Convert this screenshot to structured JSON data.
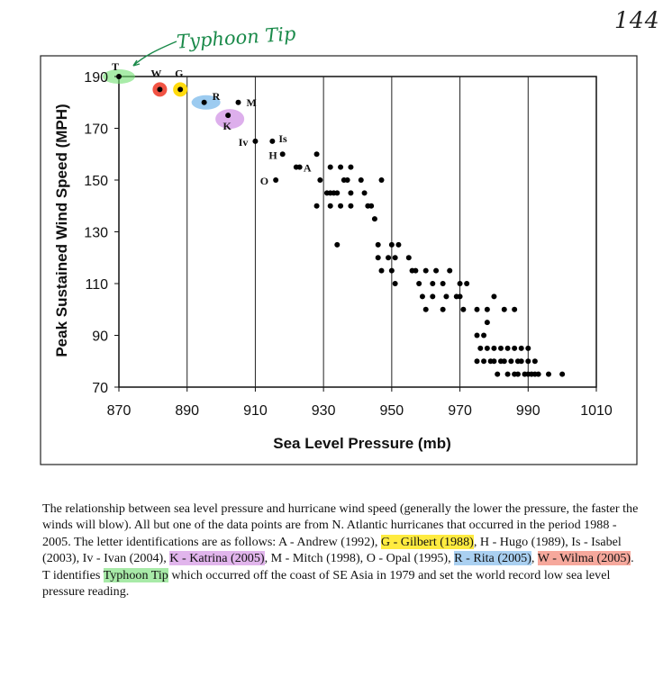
{
  "page_number": "144",
  "annotation": "Typhoon Tip",
  "chart_data": {
    "type": "scatter",
    "title": "",
    "xlabel": "Sea Level Pressure (mb)",
    "ylabel": "Peak Sustained Wind Speed (MPH)",
    "xlim": [
      870,
      1010
    ],
    "ylim": [
      70,
      190
    ],
    "xticks": [
      "870",
      "890",
      "910",
      "930",
      "950",
      "970",
      "990",
      "1010"
    ],
    "yticks": [
      "70",
      "90",
      "110",
      "130",
      "150",
      "170",
      "190"
    ],
    "xtick_values": [
      870,
      890,
      910,
      930,
      950,
      970,
      990,
      1010
    ],
    "ytick_values": [
      70,
      90,
      110,
      130,
      150,
      170,
      190
    ],
    "grid": "vertical",
    "labeled_points": [
      {
        "label": "T",
        "x": 870,
        "y": 190,
        "color": "#6fe06f"
      },
      {
        "label": "W",
        "x": 882,
        "y": 185,
        "color": "#f04a3a"
      },
      {
        "label": "G",
        "x": 888,
        "y": 185,
        "color": "#ffd800"
      },
      {
        "label": "R",
        "x": 895,
        "y": 180,
        "color": "#5aa8e6"
      },
      {
        "label": "M",
        "x": 905,
        "y": 180,
        "color": ""
      },
      {
        "label": "K",
        "x": 902,
        "y": 175,
        "color": "#c77ae0"
      },
      {
        "label": "Iv",
        "x": 910,
        "y": 165,
        "color": ""
      },
      {
        "label": "Is",
        "x": 915,
        "y": 165,
        "color": ""
      },
      {
        "label": "H",
        "x": 918,
        "y": 160,
        "color": ""
      },
      {
        "label": "A",
        "x": 922,
        "y": 155,
        "color": ""
      },
      {
        "label": "O",
        "x": 916,
        "y": 150,
        "color": ""
      }
    ],
    "points": [
      {
        "x": 923,
        "y": 155
      },
      {
        "x": 928,
        "y": 160
      },
      {
        "x": 929,
        "y": 150
      },
      {
        "x": 928,
        "y": 140
      },
      {
        "x": 931,
        "y": 145
      },
      {
        "x": 932,
        "y": 155
      },
      {
        "x": 932,
        "y": 145
      },
      {
        "x": 932,
        "y": 140
      },
      {
        "x": 933,
        "y": 145
      },
      {
        "x": 934,
        "y": 145
      },
      {
        "x": 934,
        "y": 125
      },
      {
        "x": 935,
        "y": 155
      },
      {
        "x": 935,
        "y": 140
      },
      {
        "x": 936,
        "y": 150
      },
      {
        "x": 937,
        "y": 150
      },
      {
        "x": 938,
        "y": 145
      },
      {
        "x": 938,
        "y": 155
      },
      {
        "x": 938,
        "y": 140
      },
      {
        "x": 941,
        "y": 150
      },
      {
        "x": 942,
        "y": 145
      },
      {
        "x": 943,
        "y": 140
      },
      {
        "x": 944,
        "y": 140
      },
      {
        "x": 945,
        "y": 135
      },
      {
        "x": 947,
        "y": 150
      },
      {
        "x": 946,
        "y": 125
      },
      {
        "x": 946,
        "y": 120
      },
      {
        "x": 947,
        "y": 115
      },
      {
        "x": 949,
        "y": 120
      },
      {
        "x": 950,
        "y": 125
      },
      {
        "x": 950,
        "y": 115
      },
      {
        "x": 951,
        "y": 110
      },
      {
        "x": 951,
        "y": 120
      },
      {
        "x": 952,
        "y": 125
      },
      {
        "x": 955,
        "y": 120
      },
      {
        "x": 956,
        "y": 115
      },
      {
        "x": 957,
        "y": 115
      },
      {
        "x": 958,
        "y": 110
      },
      {
        "x": 959,
        "y": 105
      },
      {
        "x": 960,
        "y": 115
      },
      {
        "x": 960,
        "y": 100
      },
      {
        "x": 962,
        "y": 105
      },
      {
        "x": 962,
        "y": 110
      },
      {
        "x": 963,
        "y": 115
      },
      {
        "x": 965,
        "y": 110
      },
      {
        "x": 965,
        "y": 100
      },
      {
        "x": 966,
        "y": 105
      },
      {
        "x": 967,
        "y": 115
      },
      {
        "x": 969,
        "y": 105
      },
      {
        "x": 970,
        "y": 110
      },
      {
        "x": 970,
        "y": 105
      },
      {
        "x": 971,
        "y": 100
      },
      {
        "x": 972,
        "y": 110
      },
      {
        "x": 975,
        "y": 100
      },
      {
        "x": 975,
        "y": 90
      },
      {
        "x": 975,
        "y": 80
      },
      {
        "x": 976,
        "y": 85
      },
      {
        "x": 977,
        "y": 90
      },
      {
        "x": 977,
        "y": 80
      },
      {
        "x": 978,
        "y": 100
      },
      {
        "x": 978,
        "y": 95
      },
      {
        "x": 978,
        "y": 85
      },
      {
        "x": 979,
        "y": 80
      },
      {
        "x": 980,
        "y": 105
      },
      {
        "x": 980,
        "y": 85
      },
      {
        "x": 980,
        "y": 80
      },
      {
        "x": 981,
        "y": 75
      },
      {
        "x": 982,
        "y": 80
      },
      {
        "x": 982,
        "y": 85
      },
      {
        "x": 983,
        "y": 100
      },
      {
        "x": 983,
        "y": 80
      },
      {
        "x": 984,
        "y": 85
      },
      {
        "x": 984,
        "y": 75
      },
      {
        "x": 985,
        "y": 80
      },
      {
        "x": 986,
        "y": 100
      },
      {
        "x": 986,
        "y": 85
      },
      {
        "x": 986,
        "y": 75
      },
      {
        "x": 987,
        "y": 80
      },
      {
        "x": 987,
        "y": 75
      },
      {
        "x": 988,
        "y": 80
      },
      {
        "x": 988,
        "y": 85
      },
      {
        "x": 989,
        "y": 75
      },
      {
        "x": 990,
        "y": 80
      },
      {
        "x": 990,
        "y": 85
      },
      {
        "x": 990,
        "y": 75
      },
      {
        "x": 991,
        "y": 75
      },
      {
        "x": 992,
        "y": 75
      },
      {
        "x": 992,
        "y": 80
      },
      {
        "x": 993,
        "y": 75
      },
      {
        "x": 996,
        "y": 75
      },
      {
        "x": 1000,
        "y": 75
      }
    ]
  },
  "caption": {
    "s1": "The relationship between sea level pressure and hurricane wind speed (generally the lower the pressure, the faster the winds will blow).  All but one of the data points are from N. Atlantic hurricanes that occurred in the period 1988 - 2005.  The letter identifications are as follows: A - Andrew (1992), ",
    "gilbert": "G - Gilbert (1988)",
    "s2": ", H - Hugo (1989), Is - Isabel (2003), Iv - Ivan (2004), ",
    "katrina": "K - Katrina (2005)",
    "s3": ", M - Mitch (1998), O - Opal (1995), ",
    "rita": "R - Rita (2005)",
    "s4": ", ",
    "wilma": "W - Wilma (2005)",
    "s5": ".  T identifies ",
    "typhoon": "Typhoon Tip",
    "s6": " which occurred off the coast of SE Asia in 1979 and set the world record low sea level pressure reading."
  }
}
